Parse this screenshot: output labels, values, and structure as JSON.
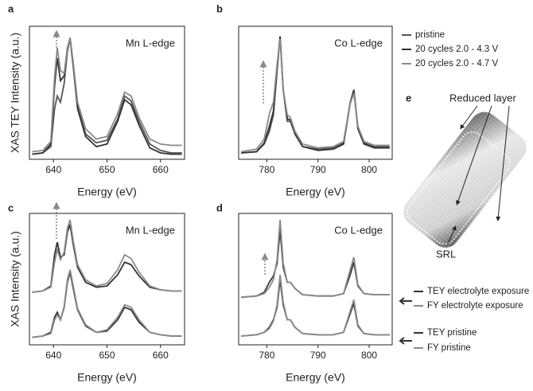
{
  "chart_data": [
    {
      "type": "line",
      "panel_label": "a",
      "annotation": "Mn L-edge",
      "xlabel": "Energy (eV)",
      "ylabel": "XAS TEY Intensity (a.u.)",
      "x": [
        636,
        638,
        639.5,
        640.2,
        640.7,
        641.3,
        642,
        642.6,
        643.1,
        643.7,
        644.5,
        646,
        648,
        650,
        652,
        653.3,
        654.5,
        656,
        658,
        660,
        662,
        664
      ],
      "xlim": [
        635.5,
        664.5
      ],
      "xticks": [
        640,
        650,
        660
      ],
      "ylim": [
        0,
        1.05
      ],
      "series": [
        {
          "color": "#555555",
          "values": [
            0.04,
            0.05,
            0.1,
            0.4,
            0.5,
            0.45,
            0.6,
            0.85,
            0.96,
            0.75,
            0.42,
            0.2,
            0.13,
            0.15,
            0.32,
            0.5,
            0.46,
            0.3,
            0.12,
            0.07,
            0.05,
            0.05
          ]
        },
        {
          "color": "#333333",
          "values": [
            0.04,
            0.05,
            0.12,
            0.58,
            0.8,
            0.62,
            0.66,
            0.88,
            0.95,
            0.73,
            0.4,
            0.18,
            0.1,
            0.12,
            0.3,
            0.47,
            0.43,
            0.27,
            0.09,
            0.05,
            0.04,
            0.04
          ]
        },
        {
          "color": "#8a8a8a",
          "values": [
            0.06,
            0.07,
            0.14,
            0.65,
            0.88,
            0.7,
            0.68,
            0.88,
            0.96,
            0.76,
            0.45,
            0.24,
            0.16,
            0.18,
            0.36,
            0.53,
            0.5,
            0.33,
            0.16,
            0.12,
            0.11,
            0.11
          ]
        }
      ]
    },
    {
      "type": "line",
      "panel_label": "b",
      "annotation": "Co L-edge",
      "xlabel": "Energy (eV)",
      "x": [
        775,
        778,
        779.5,
        780.5,
        781.3,
        782,
        782.6,
        783.2,
        784,
        784.6,
        785.5,
        787,
        790,
        793,
        795,
        796.3,
        797,
        797.8,
        799,
        801,
        804
      ],
      "xlim": [
        774.5,
        804.5
      ],
      "xticks": [
        780,
        790,
        800
      ],
      "ylim": [
        0,
        1.05
      ],
      "series": [
        {
          "name": "pristine",
          "color": "#555555",
          "values": [
            0.05,
            0.06,
            0.12,
            0.22,
            0.35,
            0.7,
            0.97,
            0.55,
            0.3,
            0.3,
            0.2,
            0.1,
            0.08,
            0.09,
            0.13,
            0.45,
            0.55,
            0.25,
            0.13,
            0.1,
            0.1
          ]
        },
        {
          "name": "20 cycles 2.0 - 4.3 V",
          "color": "#333333",
          "values": [
            0.05,
            0.06,
            0.13,
            0.26,
            0.38,
            0.72,
            0.97,
            0.55,
            0.32,
            0.31,
            0.2,
            0.1,
            0.07,
            0.08,
            0.12,
            0.44,
            0.54,
            0.24,
            0.12,
            0.09,
            0.09
          ]
        },
        {
          "name": "20 cycles 2.0 - 4.7 V",
          "color": "#8a8a8a",
          "values": [
            0.06,
            0.08,
            0.16,
            0.36,
            0.45,
            0.75,
            0.95,
            0.55,
            0.35,
            0.33,
            0.22,
            0.12,
            0.09,
            0.1,
            0.14,
            0.44,
            0.52,
            0.26,
            0.14,
            0.11,
            0.11
          ]
        }
      ]
    },
    {
      "type": "line",
      "panel_label": "c",
      "annotation": "Mn L-edge",
      "xlabel": "Energy (eV)",
      "ylabel": "XAS Intensity (a.u.)",
      "x": [
        636,
        638,
        639.5,
        640.2,
        640.7,
        641.3,
        642,
        642.6,
        643.1,
        643.7,
        644.5,
        646,
        648,
        650,
        652,
        653.3,
        654.5,
        656,
        658,
        660,
        662,
        664
      ],
      "xlim": [
        635.5,
        664.5
      ],
      "xticks": [
        640,
        650,
        660
      ],
      "ylim": [
        0,
        1.05
      ],
      "series": [
        {
          "color": "#333333",
          "values": [
            0.42,
            0.43,
            0.47,
            0.72,
            0.82,
            0.7,
            0.72,
            0.9,
            0.96,
            0.8,
            0.62,
            0.5,
            0.46,
            0.47,
            0.56,
            0.66,
            0.64,
            0.55,
            0.46,
            0.44,
            0.43,
            0.43
          ]
        },
        {
          "color": "#8a8a8a",
          "values": [
            0.42,
            0.43,
            0.46,
            0.66,
            0.76,
            0.68,
            0.74,
            0.93,
            1.0,
            0.83,
            0.64,
            0.52,
            0.47,
            0.49,
            0.6,
            0.72,
            0.69,
            0.58,
            0.47,
            0.44,
            0.43,
            0.43
          ]
        },
        {
          "color": "#333333",
          "values": [
            0.06,
            0.07,
            0.1,
            0.22,
            0.26,
            0.2,
            0.3,
            0.5,
            0.58,
            0.45,
            0.28,
            0.15,
            0.1,
            0.11,
            0.2,
            0.3,
            0.28,
            0.18,
            0.1,
            0.08,
            0.07,
            0.07
          ]
        },
        {
          "color": "#8a8a8a",
          "values": [
            0.06,
            0.07,
            0.09,
            0.2,
            0.24,
            0.2,
            0.31,
            0.52,
            0.6,
            0.47,
            0.29,
            0.16,
            0.1,
            0.12,
            0.22,
            0.32,
            0.3,
            0.2,
            0.1,
            0.08,
            0.07,
            0.07
          ]
        }
      ]
    },
    {
      "type": "line",
      "panel_label": "d",
      "annotation": "Co L-edge",
      "xlabel": "Energy (eV)",
      "x": [
        775,
        778,
        779.5,
        780.5,
        781.3,
        782,
        782.6,
        783.2,
        784,
        784.6,
        785.5,
        787,
        790,
        793,
        795,
        796.3,
        797,
        797.8,
        799,
        801,
        804
      ],
      "xlim": [
        774.5,
        804.5
      ],
      "xticks": [
        780,
        790,
        800
      ],
      "ylim": [
        0,
        1.05
      ],
      "series": [
        {
          "name": "TEY electrolyte exposure",
          "color": "#333333",
          "values": [
            0.38,
            0.39,
            0.42,
            0.5,
            0.55,
            0.65,
            0.92,
            0.62,
            0.5,
            0.5,
            0.45,
            0.4,
            0.39,
            0.39,
            0.41,
            0.56,
            0.66,
            0.47,
            0.41,
            0.4,
            0.4
          ]
        },
        {
          "name": "FY electrolyte exposure",
          "color": "#8a8a8a",
          "values": [
            0.38,
            0.39,
            0.41,
            0.46,
            0.52,
            0.68,
            1.0,
            0.65,
            0.5,
            0.5,
            0.45,
            0.4,
            0.39,
            0.39,
            0.41,
            0.6,
            0.7,
            0.48,
            0.41,
            0.4,
            0.4
          ]
        },
        {
          "name": "TEY pristine",
          "color": "#333333",
          "values": [
            0.07,
            0.08,
            0.1,
            0.14,
            0.2,
            0.3,
            0.52,
            0.32,
            0.2,
            0.2,
            0.14,
            0.09,
            0.08,
            0.08,
            0.1,
            0.25,
            0.33,
            0.15,
            0.09,
            0.08,
            0.08
          ]
        },
        {
          "name": "FY pristine",
          "color": "#8a8a8a",
          "values": [
            0.07,
            0.08,
            0.1,
            0.13,
            0.19,
            0.32,
            0.56,
            0.34,
            0.2,
            0.2,
            0.14,
            0.09,
            0.08,
            0.08,
            0.1,
            0.27,
            0.36,
            0.16,
            0.09,
            0.08,
            0.08
          ]
        }
      ]
    }
  ],
  "panel_e": {
    "panel_label": "e",
    "labels": [
      "Reduced layer",
      "SRL"
    ]
  }
}
